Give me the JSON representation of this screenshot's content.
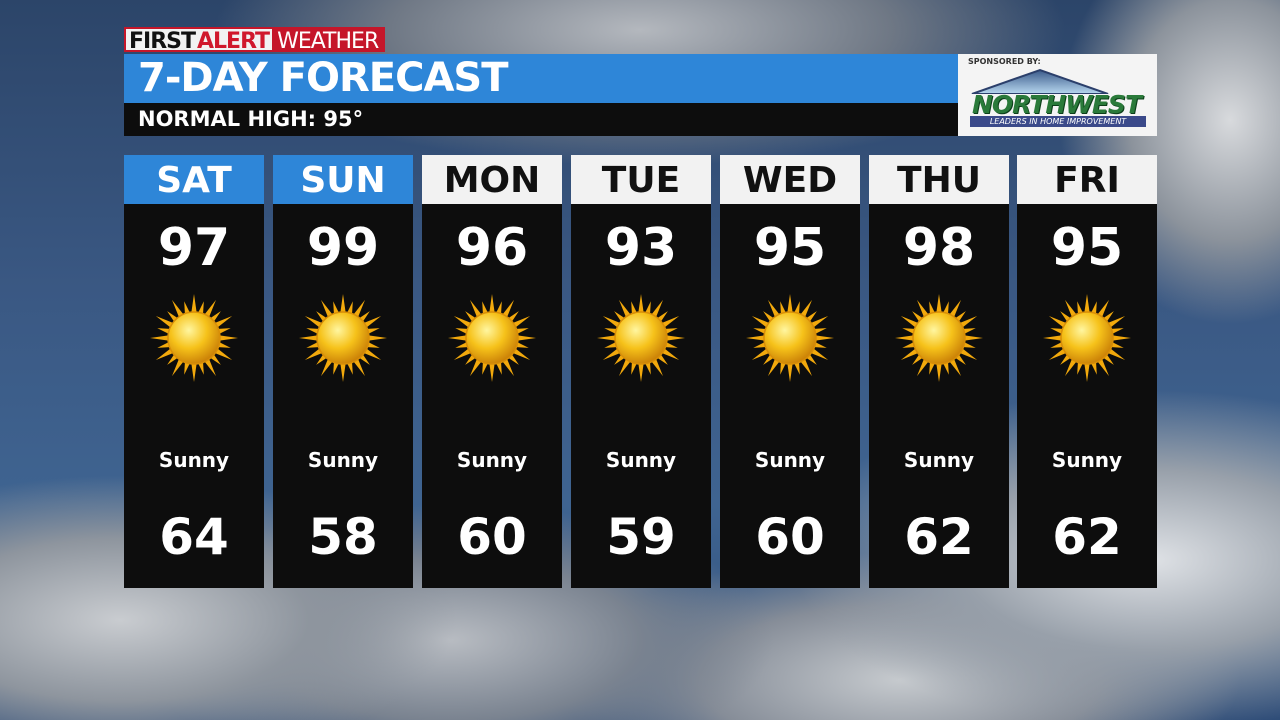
{
  "brand": {
    "first": "FIRST",
    "alert": "ALERT",
    "weather": "WEATHER",
    "accent": "#c5162a"
  },
  "header": {
    "title": "7-DAY FORECAST",
    "subtitle": "NORMAL HIGH: 95°",
    "title_bg": "#2e86d8"
  },
  "sponsor": {
    "label": "SPONSORED BY:",
    "name": "NORTHWEST",
    "tagline": "LEADERS IN HOME IMPROVEMENT"
  },
  "days": [
    {
      "day": "SAT",
      "high": "97",
      "icon": "sun-icon",
      "condition": "Sunny",
      "low": "64",
      "highlighted": true
    },
    {
      "day": "SUN",
      "high": "99",
      "icon": "sun-icon",
      "condition": "Sunny",
      "low": "58",
      "highlighted": true
    },
    {
      "day": "MON",
      "high": "96",
      "icon": "sun-icon",
      "condition": "Sunny",
      "low": "60",
      "highlighted": false
    },
    {
      "day": "TUE",
      "high": "93",
      "icon": "sun-icon",
      "condition": "Sunny",
      "low": "59",
      "highlighted": false
    },
    {
      "day": "WED",
      "high": "95",
      "icon": "sun-icon",
      "condition": "Sunny",
      "low": "60",
      "highlighted": false
    },
    {
      "day": "THU",
      "high": "98",
      "icon": "sun-icon",
      "condition": "Sunny",
      "low": "62",
      "highlighted": false
    },
    {
      "day": "FRI",
      "high": "95",
      "icon": "sun-icon",
      "condition": "Sunny",
      "low": "62",
      "highlighted": false
    }
  ]
}
